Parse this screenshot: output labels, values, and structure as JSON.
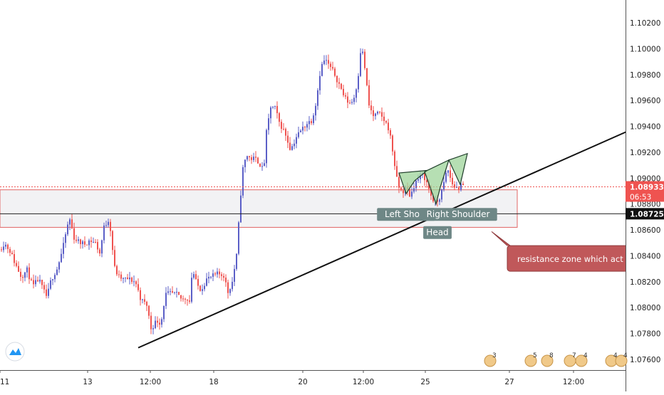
{
  "chart_data": {
    "type": "candlestick",
    "symbol_hint": "EURUSD",
    "xlabels": [
      "11",
      "13",
      "12:00",
      "18",
      "20",
      "12:00",
      "25",
      "27",
      "12:00"
    ],
    "ytick_labels": [
      "1.10200",
      "1.10000",
      "1.09800",
      "1.09600",
      "1.09400",
      "1.09200",
      "1.09000",
      "1.08800",
      "1.08600",
      "1.08400",
      "1.08200",
      "1.08000",
      "1.07800",
      "1.07600"
    ],
    "ylim": [
      1.0755,
      1.1035
    ],
    "colors": {
      "up": "#5b5fc7",
      "down": "#ef5350",
      "price_line": "#ef5350",
      "trendline": "#111111",
      "zone_fill": "#f2f2f4",
      "zone_border": "#e06666",
      "pattern_fill": "#9ed49a",
      "callout_fill": "#c0585a",
      "label_fill": "#6e8786"
    },
    "price_path": [
      [
        0,
        1.0845
      ],
      [
        6,
        1.085
      ],
      [
        14,
        1.0844
      ],
      [
        22,
        1.0833
      ],
      [
        30,
        1.0824
      ],
      [
        38,
        1.0829
      ],
      [
        46,
        1.0816
      ],
      [
        54,
        1.0822
      ],
      [
        62,
        1.0812
      ],
      [
        66,
        1.0808
      ],
      [
        72,
        1.0822
      ],
      [
        80,
        1.083
      ],
      [
        88,
        1.0845
      ],
      [
        94,
        1.0862
      ],
      [
        98,
        1.0868
      ],
      [
        104,
        1.0854
      ],
      [
        110,
        1.0851
      ],
      [
        118,
        1.0849
      ],
      [
        126,
        1.0852
      ],
      [
        134,
        1.085
      ],
      [
        140,
        1.0842
      ],
      [
        146,
        1.0862
      ],
      [
        152,
        1.0868
      ],
      [
        156,
        1.0858
      ],
      [
        160,
        1.0832
      ],
      [
        166,
        1.0824
      ],
      [
        172,
        1.0822
      ],
      [
        180,
        1.0822
      ],
      [
        190,
        1.082
      ],
      [
        198,
        1.0806
      ],
      [
        206,
        1.0802
      ],
      [
        212,
        1.0784
      ],
      [
        220,
        1.079
      ],
      [
        226,
        1.0788
      ],
      [
        232,
        1.081
      ],
      [
        240,
        1.0811
      ],
      [
        248,
        1.081
      ],
      [
        256,
        1.0806
      ],
      [
        262,
        1.0808
      ],
      [
        266,
        1.0805
      ],
      [
        270,
        1.083
      ],
      [
        276,
        1.0818
      ],
      [
        282,
        1.0814
      ],
      [
        290,
        1.0822
      ],
      [
        298,
        1.0824
      ],
      [
        306,
        1.0826
      ],
      [
        314,
        1.0825
      ],
      [
        320,
        1.0812
      ],
      [
        326,
        1.082
      ],
      [
        332,
        1.084
      ],
      [
        336,
        1.0872
      ],
      [
        340,
        1.0905
      ],
      [
        346,
        1.0918
      ],
      [
        352,
        1.0915
      ],
      [
        358,
        1.0915
      ],
      [
        364,
        1.0912
      ],
      [
        370,
        1.0905
      ],
      [
        374,
        1.0935
      ],
      [
        380,
        1.0955
      ],
      [
        386,
        1.0954
      ],
      [
        392,
        1.0943
      ],
      [
        400,
        1.0935
      ],
      [
        408,
        1.0922
      ],
      [
        416,
        1.0932
      ],
      [
        424,
        1.0938
      ],
      [
        430,
        1.0942
      ],
      [
        438,
        1.0945
      ],
      [
        444,
        1.096
      ],
      [
        450,
        1.0985
      ],
      [
        456,
        1.0992
      ],
      [
        464,
        1.0985
      ],
      [
        470,
        1.098
      ],
      [
        478,
        1.097
      ],
      [
        484,
        1.0962
      ],
      [
        490,
        1.0958
      ],
      [
        496,
        1.096
      ],
      [
        502,
        1.0975
      ],
      [
        506,
        1.0998
      ],
      [
        510,
        1.0996
      ],
      [
        514,
        1.0975
      ],
      [
        518,
        1.0956
      ],
      [
        524,
        1.0948
      ],
      [
        532,
        1.095
      ],
      [
        540,
        1.0944
      ],
      [
        546,
        1.0938
      ],
      [
        552,
        1.0918
      ],
      [
        558,
        1.0895
      ],
      [
        564,
        1.0889
      ],
      [
        570,
        1.0892
      ],
      [
        576,
        1.0886
      ],
      [
        582,
        1.0896
      ],
      [
        588,
        1.09
      ],
      [
        594,
        1.0903
      ],
      [
        600,
        1.0895
      ],
      [
        606,
        1.0885
      ],
      [
        612,
        1.088
      ],
      [
        618,
        1.0886
      ],
      [
        624,
        1.0898
      ],
      [
        628,
        1.0908
      ],
      [
        632,
        1.09
      ],
      [
        636,
        1.0894
      ],
      [
        642,
        1.0892
      ],
      [
        648,
        1.0894
      ],
      [
        652,
        1.0893
      ]
    ],
    "trendline": [
      [
        194,
        1.0769
      ],
      [
        880,
        1.0936
      ]
    ],
    "resistance_zone": {
      "x_start": 0,
      "x_end": 726,
      "y_top": 1.0891,
      "y_bottom": 1.0862
    },
    "pattern": {
      "left_shoulder": [
        [
          560,
          1.0904
        ],
        [
          570,
          1.0888
        ],
        [
          582,
          1.0898
        ],
        [
          600,
          1.0906
        ]
      ],
      "head": [
        [
          596,
          1.0905
        ],
        [
          612,
          1.088
        ],
        [
          618,
          1.0893
        ],
        [
          630,
          1.0914
        ]
      ],
      "right_shoulder": [
        [
          630,
          1.0914
        ],
        [
          646,
          1.0895
        ],
        [
          656,
          1.0919
        ]
      ]
    },
    "last_price": {
      "value": "1.08933",
      "countdown": "06:53",
      "y": 1.08933
    },
    "current_price": {
      "value": "1.08725",
      "y": 1.08725
    },
    "annotations": [
      {
        "text": "Left Shoul",
        "x": 570,
        "y": 1.0872
      },
      {
        "text": "Right Shoulder",
        "x": 643,
        "y": 1.0872
      },
      {
        "text": "Head",
        "x": 614,
        "y": 1.0858
      },
      {
        "text": "resistance zone which act as",
        "x": 800,
        "y": 1.0838
      }
    ],
    "events": [
      {
        "x": 688,
        "label": "3"
      },
      {
        "x": 745,
        "label": "5"
      },
      {
        "x": 768,
        "label": "8"
      },
      {
        "x": 800,
        "label": "7"
      },
      {
        "x": 816,
        "label": "4"
      },
      {
        "x": 858,
        "label": "4"
      },
      {
        "x": 872,
        "label": "4"
      }
    ]
  }
}
